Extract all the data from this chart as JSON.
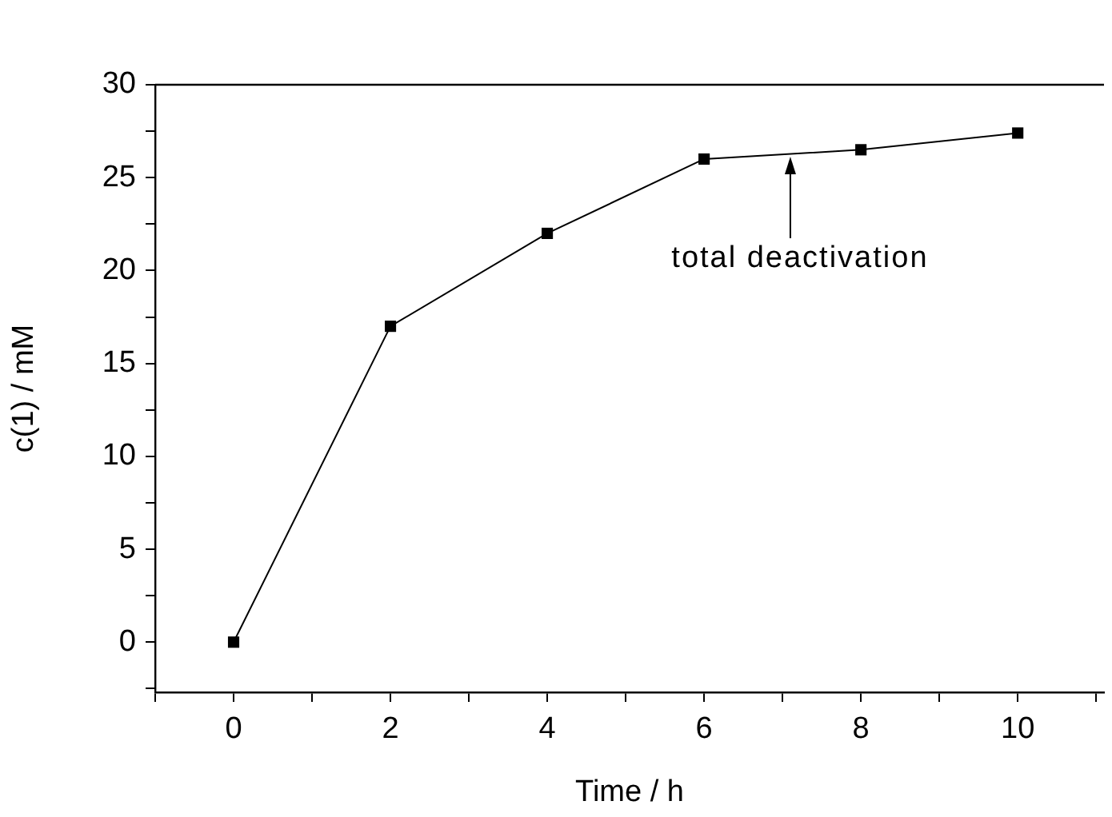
{
  "chart_data": {
    "type": "line",
    "xlabel": "Time / h",
    "ylabel": "c(1) / mM",
    "x": [
      0,
      2,
      4,
      6,
      8,
      10
    ],
    "series": [
      {
        "color": "#000000",
        "values": [
          0,
          17,
          22,
          26,
          26.5,
          27.4
        ]
      }
    ],
    "xlim": [
      -1,
      11.1
    ],
    "ylim": [
      -2.7,
      30
    ],
    "xticks": [
      {
        "value": -1,
        "label": null
      },
      0,
      {
        "value": 1,
        "label": null
      },
      2,
      {
        "value": 3,
        "label": null
      },
      4,
      {
        "value": 5,
        "label": null
      },
      6,
      {
        "value": 7,
        "label": null
      },
      8,
      {
        "value": 9,
        "label": null
      },
      10,
      {
        "value": 11,
        "label": null
      }
    ],
    "yticks": [
      {
        "value": -2.5,
        "label": null
      },
      0,
      {
        "value": 2.5,
        "label": null
      },
      5,
      {
        "value": 7.5,
        "label": null
      },
      10,
      {
        "value": 12.5,
        "label": null
      },
      15,
      {
        "value": 17.5,
        "label": null
      },
      20,
      {
        "value": 22.5,
        "label": null
      },
      25,
      {
        "value": 27.5,
        "label": null
      },
      30
    ],
    "annotations": [
      {
        "text": "total deactivation",
        "x": 7.1,
        "y": 26.3
      }
    ],
    "marker": "square",
    "line_style": "solid",
    "grid": false,
    "legend": false
  }
}
